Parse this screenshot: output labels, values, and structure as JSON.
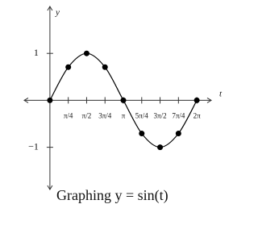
{
  "chart_data": {
    "type": "line",
    "title": "Graphing y = sin(t)",
    "x_label": "t",
    "y_label": "y",
    "x": [
      0,
      0.7854,
      1.5708,
      2.3562,
      3.1416,
      3.927,
      4.7124,
      5.4978,
      6.2832
    ],
    "values": [
      0,
      0.707,
      1,
      0.707,
      0,
      -0.707,
      -1,
      -0.707,
      0
    ],
    "color": "#000000",
    "xlim": [
      -1.1,
      6.9
    ],
    "ylim": [
      -1.9,
      2
    ],
    "xticks": [
      {
        "value": 0.7854,
        "label": "π/4"
      },
      {
        "value": 1.5708,
        "label": "π/2"
      },
      {
        "value": 2.3562,
        "label": "3π/4"
      },
      {
        "value": 3.1416,
        "label": "π"
      },
      {
        "value": 3.927,
        "label": "5π/4"
      },
      {
        "value": 4.7124,
        "label": "3π/2"
      },
      {
        "value": 5.4978,
        "label": "7π/4"
      },
      {
        "value": 6.2832,
        "label": "2π"
      }
    ],
    "yticks": [
      1,
      {
        "value": -1,
        "label": "−1"
      }
    ],
    "markers": true
  }
}
